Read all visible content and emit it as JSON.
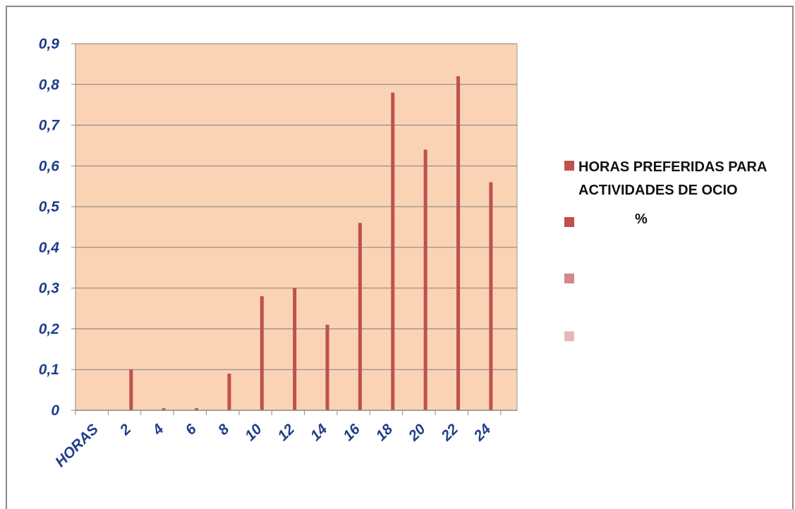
{
  "colors": {
    "plot_background": "#FAD3B5",
    "bar": "#C0504D",
    "axis_text": "#1F3D8A",
    "gridline": "#7F7F7F",
    "legend_swatches": [
      "#C0504D",
      "#C0504D",
      "#D08A88",
      "#E6B9B8"
    ]
  },
  "chart_data": {
    "type": "bar",
    "categories": [
      "HORAS",
      "2",
      "4",
      "6",
      "8",
      "10",
      "12",
      "14",
      "16",
      "18",
      "20",
      "22",
      "24"
    ],
    "series": [
      {
        "name": "HORAS PREFERIDAS PARA ACTIVIDADES DE OCIO",
        "values": [
          null,
          0.1,
          0.005,
          0.005,
          0.09,
          0.28,
          0.3,
          0.21,
          0.46,
          0.78,
          0.64,
          0.82,
          0.56
        ]
      }
    ],
    "ylim": [
      0,
      0.9
    ],
    "yticks": [
      "0",
      "0,1",
      "0,2",
      "0,3",
      "0,4",
      "0,5",
      "0,6",
      "0,7",
      "0,8",
      "0,9"
    ],
    "grid": true,
    "legend_position": "right",
    "legend": [
      {
        "label": "HORAS PREFERIDAS PARA ACTIVIDADES DE OCIO"
      },
      {
        "label": "%"
      },
      {
        "label": ""
      },
      {
        "label": ""
      }
    ]
  }
}
